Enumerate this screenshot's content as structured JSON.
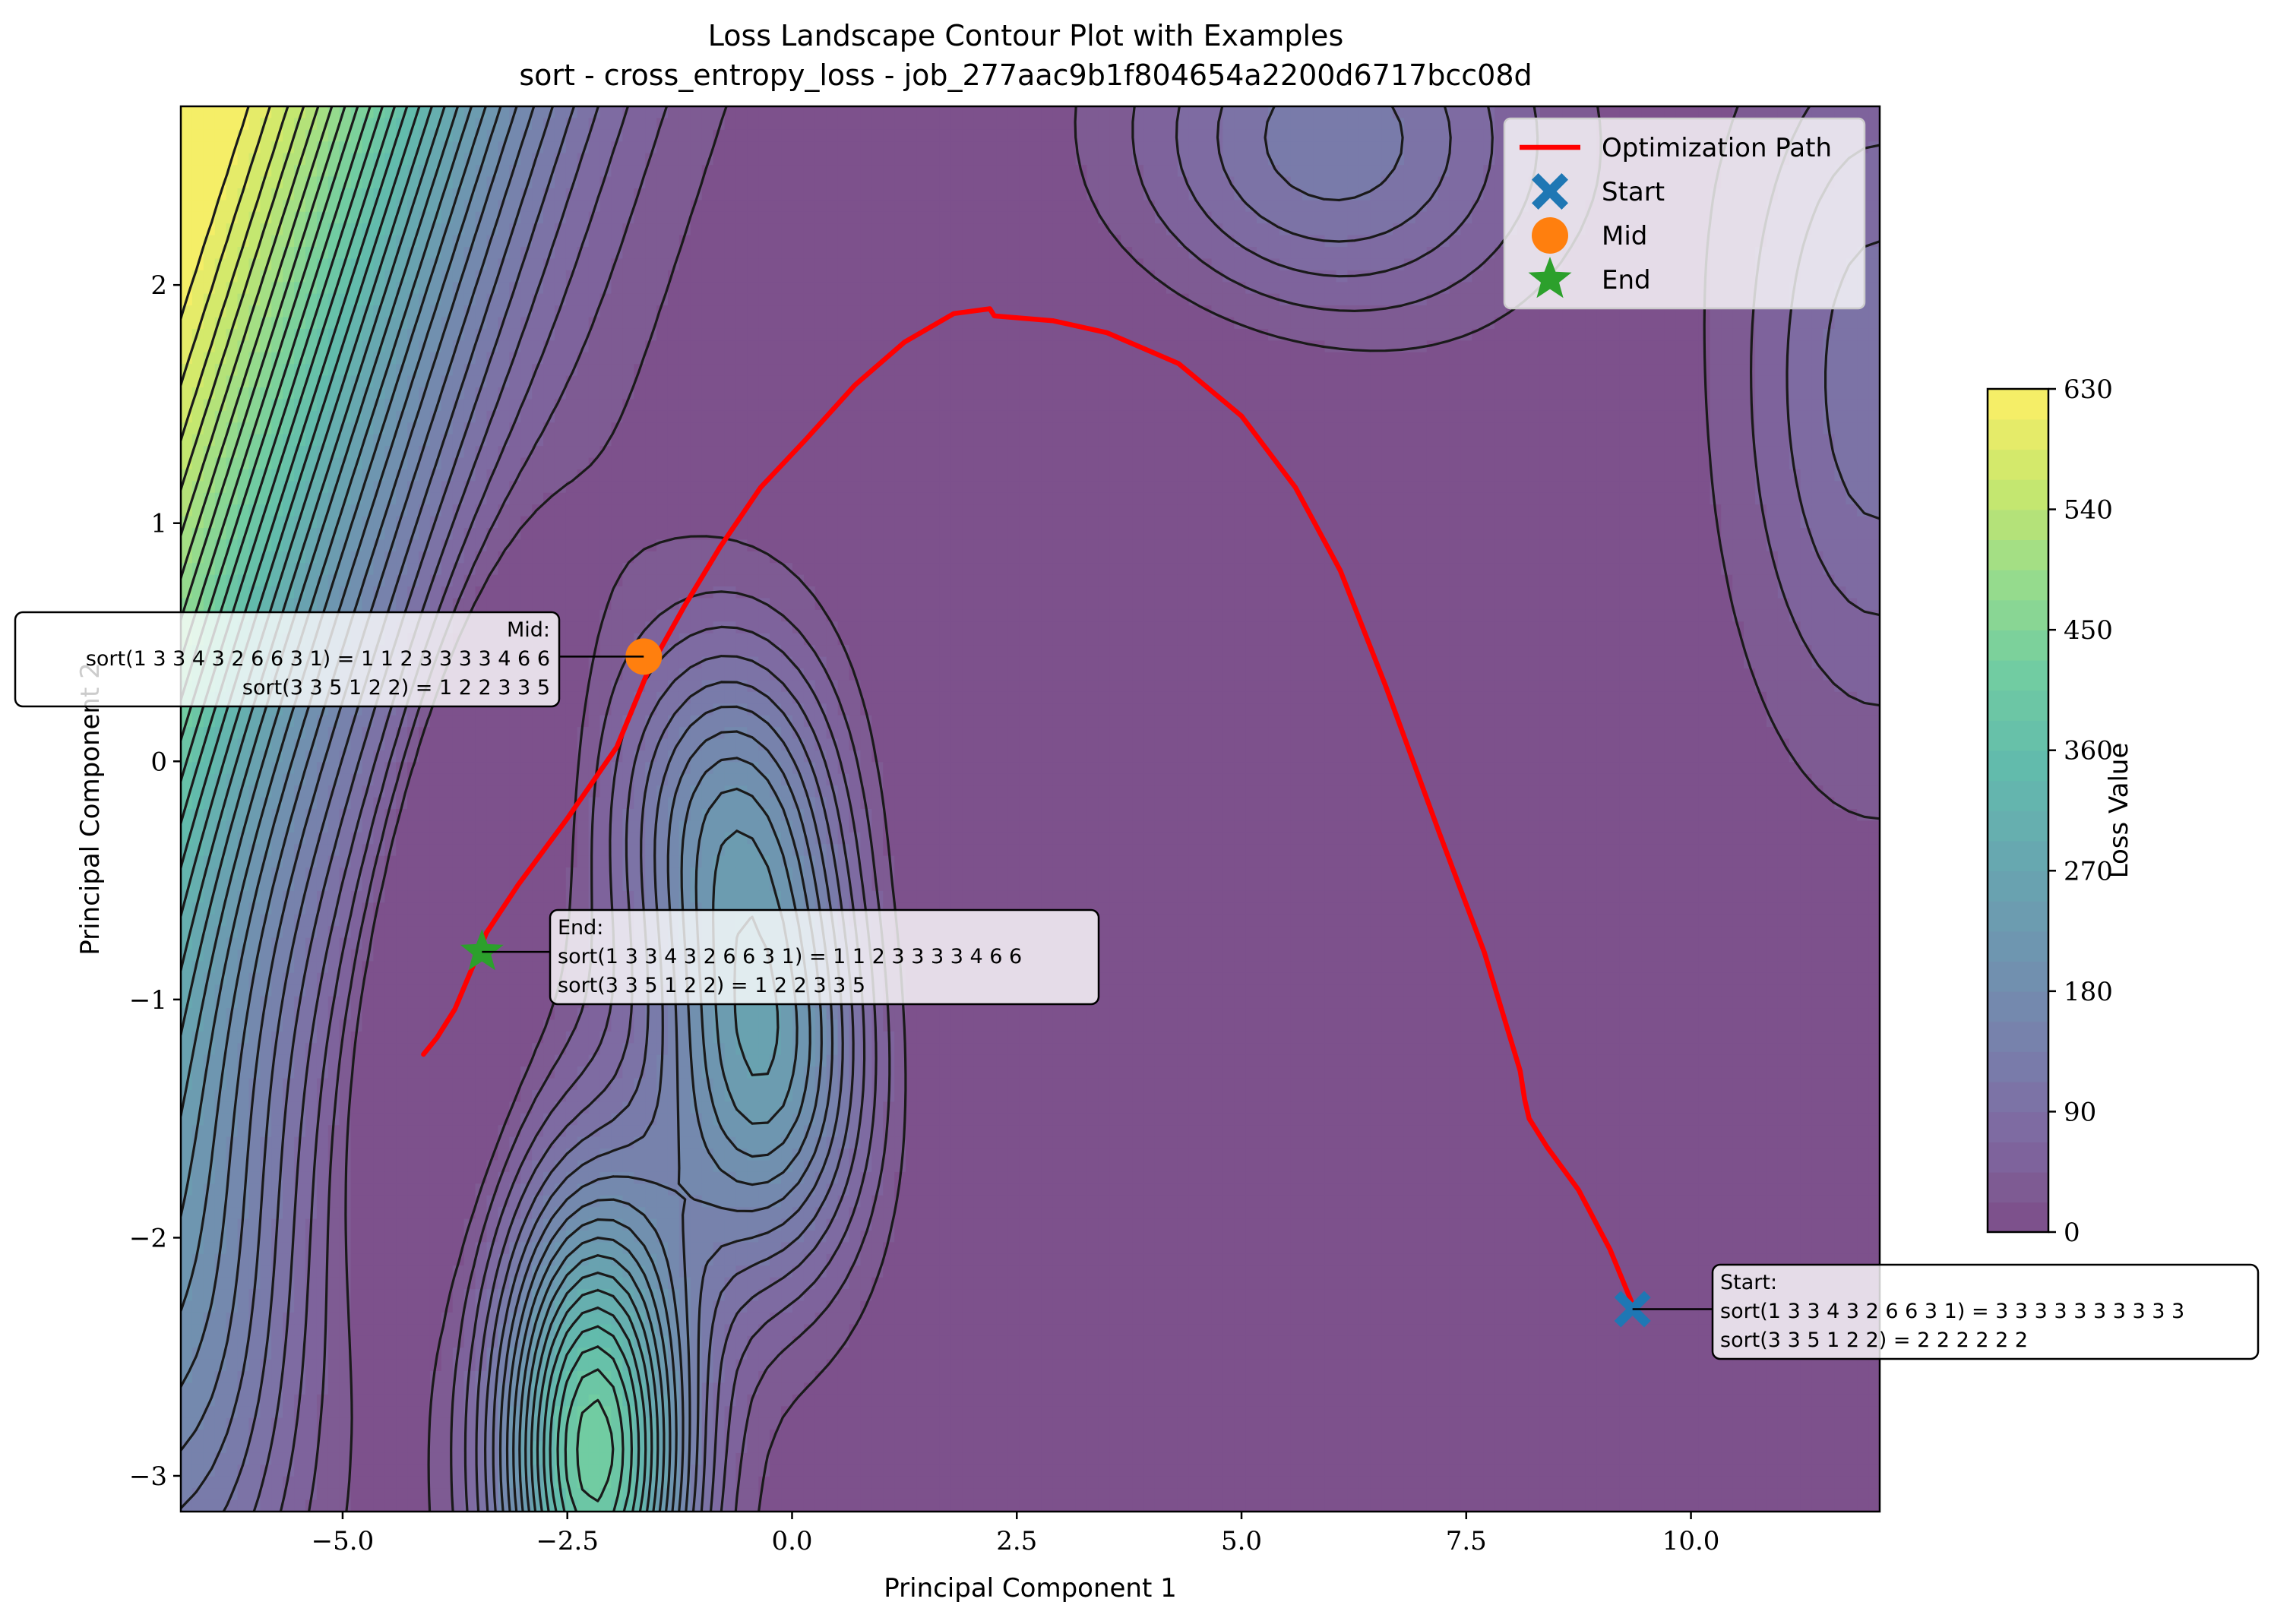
{
  "chart_data": {
    "type": "contour",
    "title": "Loss Landscape Contour Plot with Examples",
    "subtitle": "sort - cross_entropy_loss - job_277aac9b1f804654a2200d6717bcc08d",
    "xlabel": "Principal Component 1",
    "ylabel": "Principal Component 2",
    "xlim": [
      -6.8,
      12.1
    ],
    "ylim": [
      -3.15,
      2.75
    ],
    "xticks": [
      -5.0,
      -2.5,
      0.0,
      2.5,
      5.0,
      7.5,
      10.0
    ],
    "xtick_labels": [
      "−5.0",
      "−2.5",
      "0.0",
      "2.5",
      "5.0",
      "7.5",
      "10.0"
    ],
    "yticks": [
      -3,
      -2,
      -1,
      0,
      1,
      2
    ],
    "ytick_labels": [
      "−3",
      "−2",
      "−1",
      "0",
      "1",
      "2"
    ],
    "colorbar": {
      "label": "Loss Value",
      "min": 0,
      "max": 630,
      "ticks": [
        0,
        90,
        180,
        270,
        360,
        450,
        540,
        630
      ],
      "tick_labels": [
        "0",
        "90",
        "180",
        "270",
        "360",
        "450",
        "540",
        "630"
      ],
      "colormap": "viridis",
      "levels": 28
    },
    "grid": false,
    "legend": {
      "placement": "top-right",
      "entries": [
        {
          "label": "Optimization Path",
          "marker": "line",
          "color": "#ff0000"
        },
        {
          "label": "Start",
          "marker": "X",
          "color": "#1f77b4"
        },
        {
          "label": "Mid",
          "marker": "circle",
          "color": "#ff7f0e"
        },
        {
          "label": "End",
          "marker": "star",
          "color": "#2ca02c"
        }
      ]
    },
    "path": {
      "name": "Optimization Path",
      "color": "#ff0000",
      "points": [
        [
          9.35,
          -2.28
        ],
        [
          9.1,
          -2.05
        ],
        [
          8.75,
          -1.8
        ],
        [
          8.4,
          -1.62
        ],
        [
          8.2,
          -1.5
        ],
        [
          8.15,
          -1.42
        ],
        [
          8.1,
          -1.3
        ],
        [
          7.7,
          -0.8
        ],
        [
          7.2,
          -0.3
        ],
        [
          6.6,
          0.32
        ],
        [
          6.1,
          0.8
        ],
        [
          5.6,
          1.15
        ],
        [
          5.0,
          1.45
        ],
        [
          4.3,
          1.67
        ],
        [
          3.5,
          1.8
        ],
        [
          2.9,
          1.85
        ],
        [
          2.25,
          1.87
        ],
        [
          2.2,
          1.9
        ],
        [
          1.8,
          1.88
        ],
        [
          1.25,
          1.76
        ],
        [
          0.7,
          1.58
        ],
        [
          0.15,
          1.35
        ],
        [
          -0.35,
          1.15
        ],
        [
          -0.8,
          0.9
        ],
        [
          -1.2,
          0.65
        ],
        [
          -1.6,
          0.38
        ],
        [
          -1.95,
          0.06
        ],
        [
          -2.5,
          -0.24
        ],
        [
          -3.05,
          -0.52
        ],
        [
          -3.4,
          -0.72
        ],
        [
          -3.55,
          -0.86
        ],
        [
          -3.75,
          -1.04
        ],
        [
          -3.95,
          -1.16
        ],
        [
          -4.1,
          -1.23
        ]
      ]
    },
    "markers": [
      {
        "name": "Start",
        "x": 9.35,
        "y": -2.3,
        "shape": "X",
        "color": "#1f77b4"
      },
      {
        "name": "Mid",
        "x": -1.65,
        "y": 0.44,
        "shape": "circle",
        "color": "#ff7f0e"
      },
      {
        "name": "End",
        "x": -3.45,
        "y": -0.8,
        "shape": "star",
        "color": "#2ca02c"
      }
    ],
    "annotations": [
      {
        "name": "Mid",
        "lines": [
          "Mid:",
          "sort(1 3 3 4 3 2 6 6 3 1) = 1 1 2 3 3 3 3 4 6 6",
          "sort(3 3 5 1 2 2) = 1 2 2 3 3 5"
        ],
        "align": "right"
      },
      {
        "name": "End",
        "lines": [
          "End:",
          "sort(1 3 3 4 3 2 6 6 3 1) = 1 1 2 3 3 3 3 4 6 6",
          "sort(3 3 5 1 2 2) = 1 2 2 3 3 5"
        ],
        "align": "left"
      },
      {
        "name": "Start",
        "lines": [
          "Start:",
          "sort(1 3 3 4 3 2 6 6 3 1) = 3 3 3 3 3 3 3 3 3 3",
          "sort(3 3 5 1 2 2) = 2 2 2 2 2 2"
        ],
        "align": "left"
      }
    ]
  }
}
